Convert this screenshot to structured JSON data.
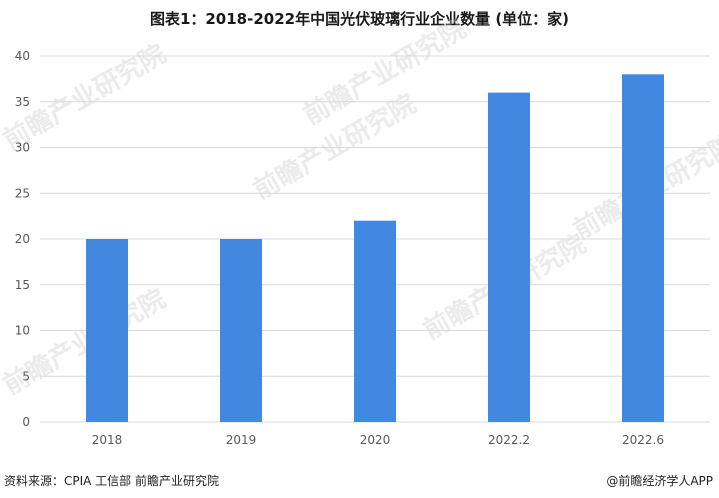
{
  "title": "图表1：2018-2022年中国光伏玻璃行业企业数量 (单位：家)",
  "footer": {
    "source": "资料来源：CPIA 工信部 前瞻产业研究院",
    "brand": "@前瞻经济学人APP"
  },
  "watermark": {
    "text": "前瞻产业研究院"
  },
  "colors": {
    "bar": "#4287e0",
    "grid": "#d9d9d9",
    "tick": "#595959",
    "watermark": "#c8c8c8"
  },
  "chart_data": {
    "type": "bar",
    "title": "图表1：2018-2022年中国光伏玻璃行业企业数量 (单位：家)",
    "categories": [
      "2018",
      "2019",
      "2020",
      "2022.2",
      "2022.6"
    ],
    "values": [
      20,
      20,
      22,
      36,
      38
    ],
    "xlabel": "",
    "ylabel": "",
    "ylim": [
      0,
      40
    ],
    "yticks": [
      0,
      5,
      10,
      15,
      20,
      25,
      30,
      35,
      40
    ],
    "grid": true,
    "legend": "none"
  }
}
